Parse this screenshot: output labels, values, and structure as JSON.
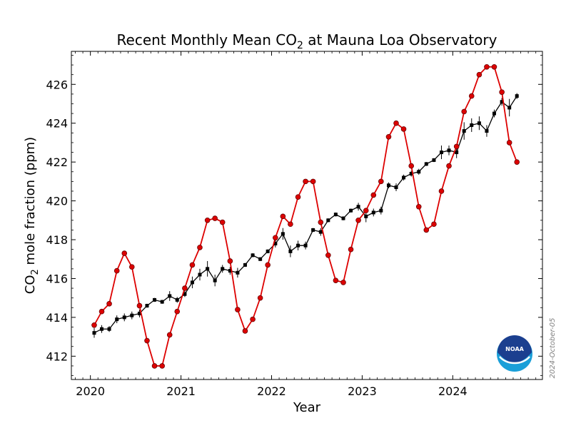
{
  "chart_data": {
    "type": "line",
    "title": {
      "main": "Recent Monthly Mean CO",
      "sub": "2",
      "tail": " at Mauna Loa Observatory"
    },
    "xlabel": "Year",
    "ylabel": {
      "main": "CO",
      "sub": "2",
      "tail": " mole fraction (ppm)"
    },
    "xlim": [
      2019.79,
      2024.99
    ],
    "ylim": [
      410.8,
      427.7
    ],
    "xticks": [
      2020,
      2021,
      2022,
      2023,
      2024
    ],
    "yticks": [
      412,
      414,
      416,
      418,
      420,
      422,
      424,
      426
    ],
    "grid": false,
    "legend": "none",
    "date_stamp": "2024-October-05",
    "logo_text": "NOAA",
    "colors": {
      "monthly": "#dd0000",
      "marker_edge": "#660000",
      "deseasonalized": "#000000",
      "logo_outer": "#1a9fd8",
      "logo_inner": "#1b3f8f"
    },
    "series": [
      {
        "key": "monthly",
        "style": "red line with circle markers",
        "x": [
          2020.042,
          2020.125,
          2020.208,
          2020.292,
          2020.375,
          2020.458,
          2020.542,
          2020.625,
          2020.708,
          2020.792,
          2020.875,
          2020.958,
          2021.042,
          2021.125,
          2021.208,
          2021.292,
          2021.375,
          2021.458,
          2021.542,
          2021.625,
          2021.708,
          2021.792,
          2021.875,
          2021.958,
          2022.042,
          2022.125,
          2022.208,
          2022.292,
          2022.375,
          2022.458,
          2022.542,
          2022.625,
          2022.708,
          2022.792,
          2022.875,
          2022.958,
          2023.042,
          2023.125,
          2023.208,
          2023.292,
          2023.375,
          2023.458,
          2023.542,
          2023.625,
          2023.708,
          2023.792,
          2023.875,
          2023.958,
          2024.042,
          2024.125,
          2024.208,
          2024.292,
          2024.375,
          2024.458,
          2024.542,
          2024.625,
          2024.708
        ],
        "y": [
          413.6,
          414.3,
          414.7,
          416.4,
          417.3,
          416.6,
          414.6,
          412.8,
          411.5,
          411.5,
          413.1,
          414.3,
          415.5,
          416.7,
          417.6,
          419.0,
          419.1,
          418.9,
          416.9,
          414.4,
          413.3,
          413.9,
          415.0,
          416.7,
          418.1,
          419.2,
          418.8,
          420.2,
          421.0,
          421.0,
          418.9,
          417.2,
          415.9,
          415.8,
          417.5,
          419.0,
          419.5,
          420.3,
          421.0,
          423.3,
          424.0,
          423.7,
          421.8,
          419.7,
          418.5,
          418.8,
          420.5,
          421.8,
          422.8,
          424.6,
          425.4,
          426.5,
          426.9,
          426.9,
          425.6,
          423.0,
          422.0
        ]
      },
      {
        "key": "deseasonalized",
        "style": "black line with square markers and error bars",
        "x": [
          2020.042,
          2020.125,
          2020.208,
          2020.292,
          2020.375,
          2020.458,
          2020.542,
          2020.625,
          2020.708,
          2020.792,
          2020.875,
          2020.958,
          2021.042,
          2021.125,
          2021.208,
          2021.292,
          2021.375,
          2021.458,
          2021.542,
          2021.625,
          2021.708,
          2021.792,
          2021.875,
          2021.958,
          2022.042,
          2022.125,
          2022.208,
          2022.292,
          2022.375,
          2022.458,
          2022.542,
          2022.625,
          2022.708,
          2022.792,
          2022.875,
          2022.958,
          2023.042,
          2023.125,
          2023.208,
          2023.292,
          2023.375,
          2023.458,
          2023.542,
          2023.625,
          2023.708,
          2023.792,
          2023.875,
          2023.958,
          2024.042,
          2024.125,
          2024.208,
          2024.292,
          2024.375,
          2024.458,
          2024.542,
          2024.625,
          2024.708
        ],
        "y": [
          413.2,
          413.4,
          413.4,
          413.9,
          414.0,
          414.1,
          414.2,
          414.6,
          414.9,
          414.8,
          415.1,
          414.9,
          415.2,
          415.8,
          416.2,
          416.5,
          415.9,
          416.5,
          416.4,
          416.3,
          416.7,
          417.2,
          417.0,
          417.4,
          417.8,
          418.3,
          417.4,
          417.7,
          417.7,
          418.5,
          418.4,
          419.0,
          419.3,
          419.1,
          419.5,
          419.7,
          419.2,
          419.4,
          419.5,
          420.8,
          420.7,
          421.2,
          421.4,
          421.5,
          421.9,
          422.1,
          422.5,
          422.6,
          422.5,
          423.6,
          423.9,
          424.0,
          423.6,
          424.5,
          425.1,
          424.8,
          425.4
        ],
        "err": [
          0.25,
          0.2,
          0.15,
          0.2,
          0.2,
          0.2,
          0.2,
          0.1,
          0.1,
          0.1,
          0.25,
          0.15,
          0.15,
          0.3,
          0.3,
          0.4,
          0.3,
          0.2,
          0.2,
          0.25,
          0.1,
          0.1,
          0.1,
          0.1,
          0.2,
          0.3,
          0.3,
          0.25,
          0.2,
          0.1,
          0.2,
          0.1,
          0.1,
          0.1,
          0.1,
          0.2,
          0.3,
          0.2,
          0.2,
          0.15,
          0.2,
          0.15,
          0.15,
          0.15,
          0.1,
          0.1,
          0.35,
          0.25,
          0.3,
          0.45,
          0.35,
          0.35,
          0.3,
          0.2,
          0.2,
          0.45,
          0.15
        ]
      }
    ]
  }
}
